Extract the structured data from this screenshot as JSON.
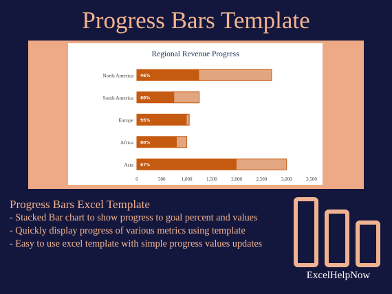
{
  "page": {
    "title": "Progress Bars Template"
  },
  "description": {
    "heading": "Progress Bars Excel Template",
    "lines": [
      "- Stacked Bar chart to show progress to goal percent and values",
      "- Quickly display progress of various metrics using template",
      "- Easy to use excel template with simple progress values updates"
    ]
  },
  "brand": {
    "name": "ExcelHelpNow",
    "logo_icon": "three-bars-logo-icon"
  },
  "colors": {
    "background": "#14173d",
    "accent": "#f0b391",
    "frame": "#eeaa86",
    "progress": "#c55a11",
    "remaining": "#e2a680"
  },
  "chart_data": {
    "type": "bar",
    "orientation": "horizontal",
    "stacked": true,
    "title": "Regional Revenue Progress",
    "categories": [
      "North America",
      "South America",
      "Europe",
      "Africa",
      "Asia"
    ],
    "series": [
      {
        "values": [
          1250,
          750,
          1000,
          800,
          2000
        ]
      },
      {
        "values": [
          1450,
          500,
          50,
          200,
          1000
        ]
      }
    ],
    "goals": [
      2700,
      1250,
      1050,
      1000,
      3000
    ],
    "data_labels": [
      "46%",
      "60%",
      "95%",
      "80%",
      "67%"
    ],
    "xlim": [
      0,
      3500
    ],
    "xticks": [
      0,
      500,
      1000,
      1500,
      2000,
      2500,
      3000,
      3500
    ],
    "tick_labels": [
      "0",
      "500",
      "1,000",
      "1,500",
      "2,000",
      "2,500",
      "3,000",
      "3,500"
    ],
    "grid": false,
    "legend": "none"
  }
}
